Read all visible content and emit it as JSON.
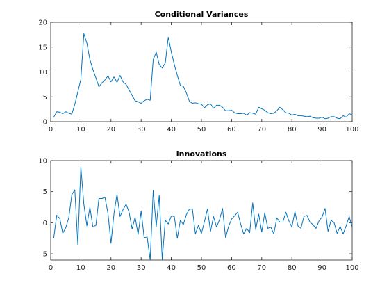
{
  "chart_data": [
    {
      "type": "line",
      "title": "Conditional Variances",
      "xlabel": "",
      "ylabel": "",
      "xlim": [
        0,
        100
      ],
      "ylim": [
        0,
        20
      ],
      "xticks": [
        0,
        10,
        20,
        30,
        40,
        50,
        60,
        70,
        80,
        90,
        100
      ],
      "yticks": [
        0,
        5,
        10,
        15,
        20
      ],
      "grid": false,
      "color": "#0072BD",
      "series": [
        {
          "x": [
            1,
            2,
            3,
            4,
            5,
            6,
            7,
            8,
            9,
            10,
            11,
            12,
            13,
            14,
            15,
            16,
            17,
            18,
            19,
            20,
            21,
            22,
            23,
            24,
            25,
            26,
            27,
            28,
            29,
            30,
            31,
            32,
            33,
            34,
            35,
            36,
            37,
            38,
            39,
            40,
            41,
            42,
            43,
            44,
            45,
            46,
            47,
            48,
            49,
            50,
            51,
            52,
            53,
            54,
            55,
            56,
            57,
            58,
            59,
            60,
            61,
            62,
            63,
            64,
            65,
            66,
            67,
            68,
            69,
            70,
            71,
            72,
            73,
            74,
            75,
            76,
            77,
            78,
            79,
            80,
            81,
            82,
            83,
            84,
            85,
            86,
            87,
            88,
            89,
            90,
            91,
            92,
            93,
            94,
            95,
            96,
            97,
            98,
            99,
            100
          ],
          "values": [
            0.9,
            2.0,
            1.9,
            1.6,
            2.0,
            1.7,
            1.5,
            3.5,
            6.0,
            8.5,
            17.7,
            15.8,
            12.5,
            10.5,
            8.8,
            7.0,
            7.8,
            8.4,
            9.2,
            8.0,
            9.0,
            7.9,
            9.3,
            8.0,
            7.5,
            6.4,
            5.3,
            4.2,
            4.0,
            3.7,
            4.2,
            4.5,
            4.3,
            12.5,
            14.0,
            11.5,
            10.8,
            11.8,
            17.0,
            14.0,
            11.5,
            9.3,
            7.3,
            7.1,
            5.8,
            4.1,
            3.7,
            3.8,
            3.6,
            3.5,
            2.8,
            3.4,
            3.6,
            2.7,
            3.3,
            3.3,
            2.9,
            2.2,
            2.2,
            2.3,
            1.8,
            1.6,
            1.6,
            1.7,
            1.3,
            1.8,
            1.7,
            1.5,
            2.9,
            2.6,
            2.3,
            1.8,
            1.6,
            1.7,
            2.2,
            2.9,
            2.4,
            1.8,
            1.7,
            1.3,
            1.5,
            1.2,
            1.2,
            1.1,
            1.0,
            1.1,
            0.8,
            0.7,
            0.7,
            0.9,
            0.6,
            0.7,
            1.0,
            1.0,
            0.7,
            0.6,
            1.2,
            0.9,
            1.6,
            1.4
          ]
        }
      ]
    },
    {
      "type": "line",
      "title": "Innovations",
      "xlabel": "",
      "ylabel": "",
      "xlim": [
        0,
        100
      ],
      "ylim": [
        -6,
        10
      ],
      "xticks": [
        0,
        10,
        20,
        30,
        40,
        50,
        60,
        70,
        80,
        90,
        100
      ],
      "yticks": [
        -5,
        0,
        5,
        10
      ],
      "grid": false,
      "color": "#0072BD",
      "series": [
        {
          "x": [
            1,
            2,
            3,
            4,
            5,
            6,
            7,
            8,
            9,
            10,
            11,
            12,
            13,
            14,
            15,
            16,
            17,
            18,
            19,
            20,
            21,
            22,
            23,
            24,
            25,
            26,
            27,
            28,
            29,
            30,
            31,
            32,
            33,
            34,
            35,
            36,
            37,
            38,
            39,
            40,
            41,
            42,
            43,
            44,
            45,
            46,
            47,
            48,
            49,
            50,
            51,
            52,
            53,
            54,
            55,
            56,
            57,
            58,
            59,
            60,
            61,
            62,
            63,
            64,
            65,
            66,
            67,
            68,
            69,
            70,
            71,
            72,
            73,
            74,
            75,
            76,
            77,
            78,
            79,
            80,
            81,
            82,
            83,
            84,
            85,
            86,
            87,
            88,
            89,
            90,
            91,
            92,
            93,
            94,
            95,
            96,
            97,
            98,
            99,
            100
          ],
          "values": [
            -2.5,
            1.2,
            0.7,
            -1.7,
            -0.8,
            0.8,
            4.5,
            5.3,
            -3.5,
            9.0,
            3.0,
            -0.5,
            2.5,
            -0.7,
            -0.4,
            3.9,
            3.9,
            4.1,
            1.5,
            -3.3,
            1.5,
            4.6,
            1.0,
            2.1,
            3.0,
            1.7,
            -1.0,
            0.9,
            -1.9,
            1.9,
            -2.4,
            -2.3,
            -6.0,
            5.2,
            -0.6,
            4.4,
            -5.9,
            0.4,
            -0.2,
            1.1,
            1.0,
            -2.5,
            0.4,
            -0.3,
            1.3,
            2.2,
            2.2,
            -1.8,
            -0.4,
            -1.7,
            0.2,
            2.2,
            -1.4,
            1.0,
            -0.7,
            0.5,
            2.3,
            -2.4,
            -0.6,
            0.6,
            1.1,
            1.7,
            -0.2,
            -1.8,
            -0.9,
            -1.6,
            3.2,
            -1.1,
            1.4,
            -1.5,
            1.6,
            -0.9,
            -0.7,
            -1.8,
            0.8,
            0.1,
            0.1,
            1.7,
            0.3,
            -0.7,
            1.8,
            -0.5,
            -0.9,
            1.0,
            1.2,
            0.1,
            -0.3,
            -0.9,
            0.3,
            0.9,
            2.3,
            -1.4,
            0.4,
            0.0,
            -1.7,
            -0.6,
            -1.8,
            -0.5,
            1.0,
            -0.7
          ]
        }
      ]
    }
  ]
}
